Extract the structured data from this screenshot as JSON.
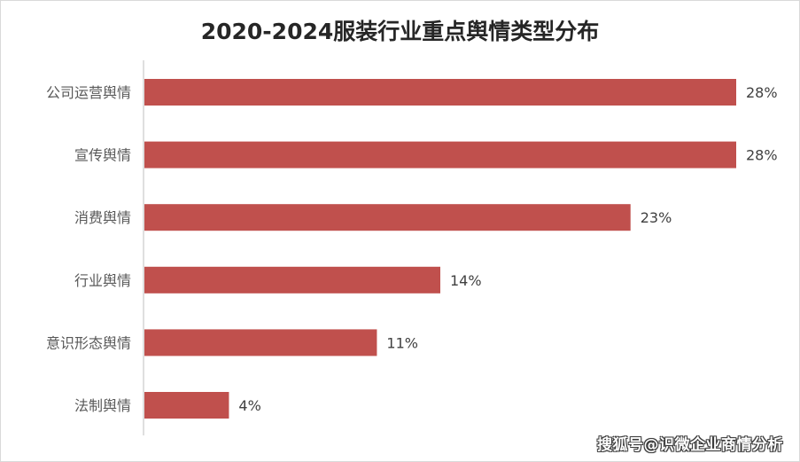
{
  "chart_data": {
    "type": "bar",
    "orientation": "horizontal",
    "title": "2020-2024服装行业重点舆情类型分布",
    "categories": [
      "公司运营舆情",
      "宣传舆情",
      "消费舆情",
      "行业舆情",
      "意识形态舆情",
      "法制舆情"
    ],
    "values": [
      28,
      28,
      23,
      14,
      11,
      4
    ],
    "value_labels": [
      "28%",
      "28%",
      "23%",
      "14%",
      "11%",
      "4%"
    ],
    "unit": "%",
    "xlim": [
      0,
      28
    ],
    "grid": false,
    "legend": "none",
    "bar_color": "#c0504d"
  },
  "watermark": "搜狐号@识微企业商情分析"
}
